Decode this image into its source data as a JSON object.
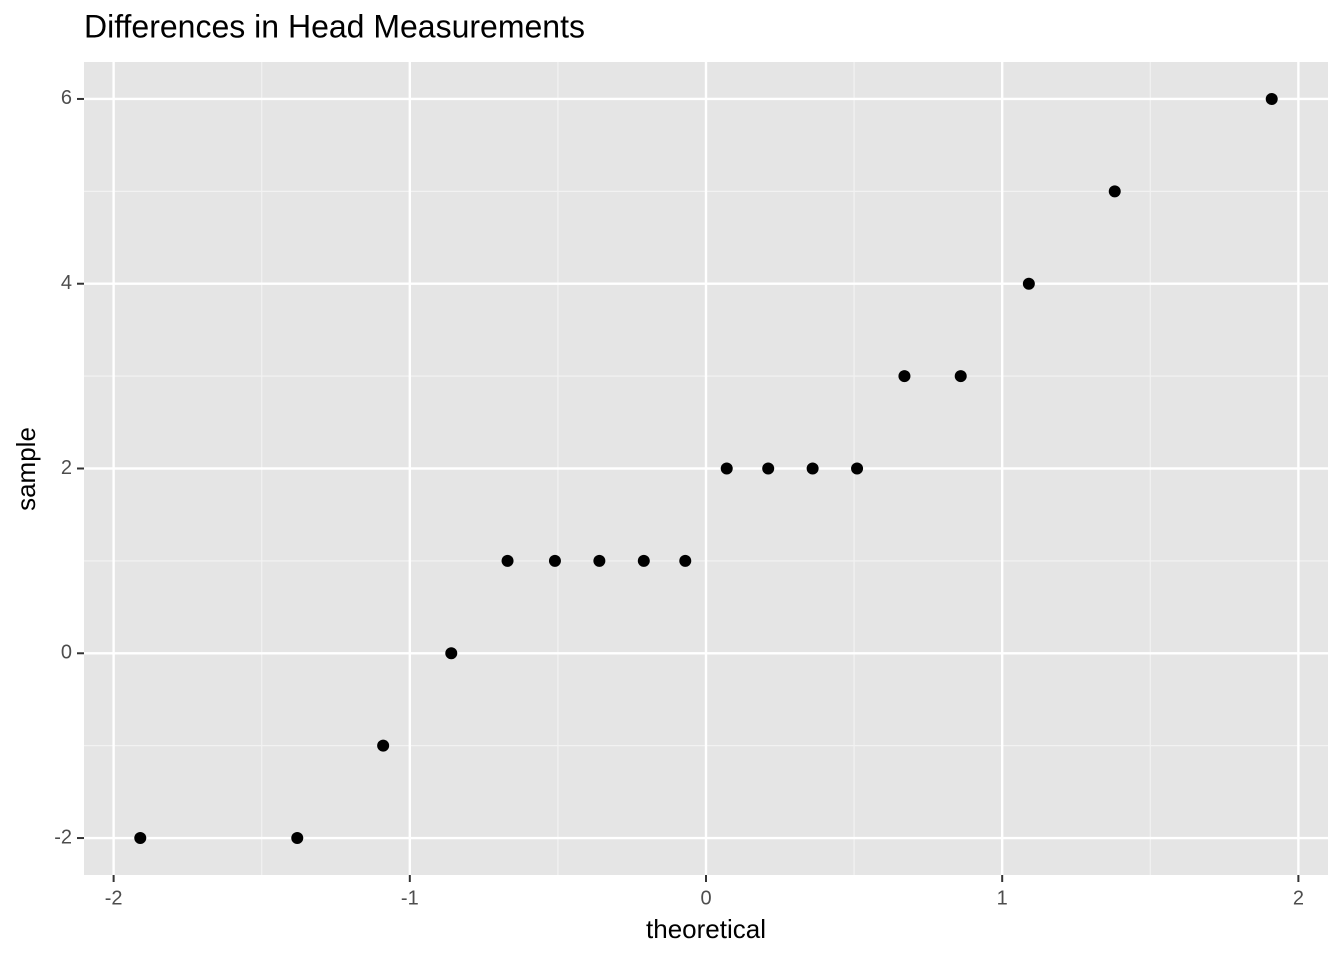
{
  "chart_data": {
    "type": "scatter",
    "title": "Differences in Head Measurements",
    "x_label": "theoretical",
    "y_label": "sample",
    "x": [
      -1.91,
      -1.38,
      -1.09,
      -0.86,
      -0.67,
      -0.51,
      -0.36,
      -0.21,
      -0.07,
      0.07,
      0.21,
      0.36,
      0.51,
      0.67,
      0.86,
      1.09,
      1.38,
      1.91
    ],
    "values": [
      -2,
      -2,
      -1,
      0,
      1,
      1,
      1,
      1,
      1,
      2,
      2,
      2,
      2,
      3,
      3,
      4,
      5,
      6
    ],
    "color": "#000000",
    "xlim": [
      -2.1,
      2.1
    ],
    "ylim": [
      -2.4,
      6.4
    ],
    "xticks": [
      -2,
      -1,
      0,
      1,
      2
    ],
    "yticks": [
      -2,
      0,
      2,
      4,
      6
    ],
    "x_minor_ticks": [
      -1.5,
      -0.5,
      0.5,
      1.5
    ],
    "y_minor_ticks": [
      -1,
      1,
      3,
      5
    ],
    "grid": true
  }
}
